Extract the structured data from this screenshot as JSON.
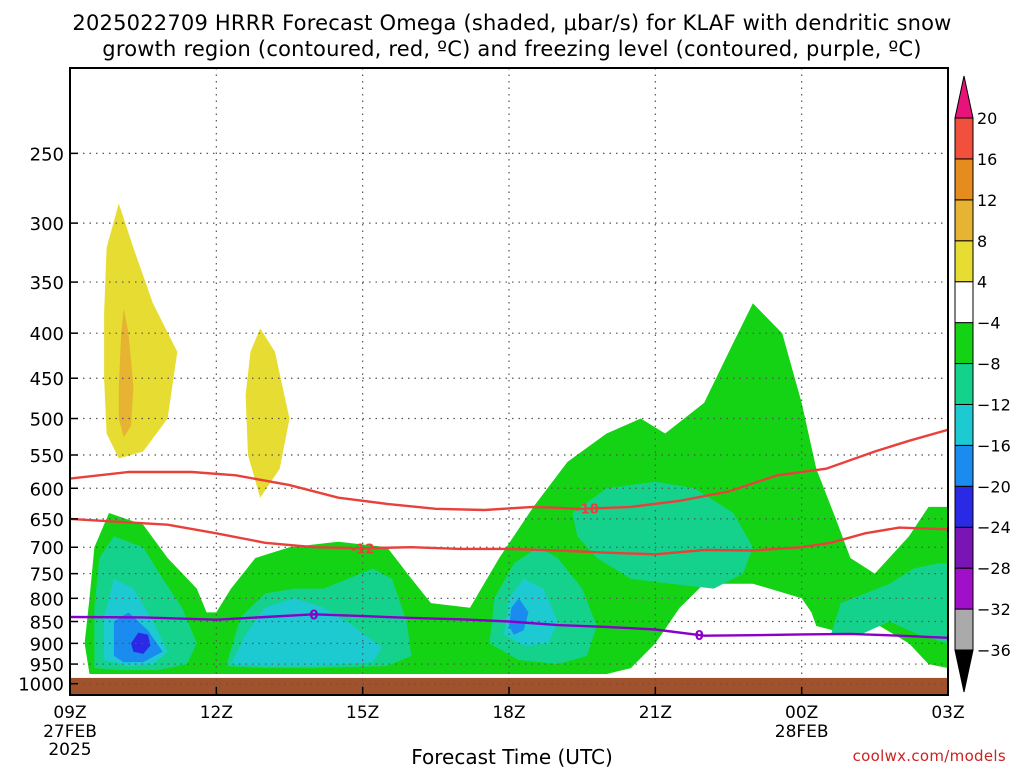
{
  "title_line1": "2025022709 HRRR Forecast Omega (shaded, μbar/s) for KLAF with dendritic snow",
  "title_line2": "growth region (contoured, red, ºC) and freezing level (contoured, purple, ºC)",
  "credit": "coolwx.com/models",
  "colors": {
    "frame": "#000000",
    "grid": "#555555",
    "ground": "#a0522d",
    "dgz_contour": "#e8413c",
    "freezing_contour": "#8a00c8"
  },
  "chart_data": {
    "type": "heatmap",
    "xlabel": "Forecast Time (UTC)",
    "ylabel": "",
    "x_range_hours": [
      0,
      18
    ],
    "y_range_hpa": [
      1030,
      200
    ],
    "y_scale": "log-pressure",
    "grid": true,
    "x_ticks": [
      {
        "hour": 0,
        "label": "09Z",
        "sub1": "27FEB",
        "sub2": "2025"
      },
      {
        "hour": 3,
        "label": "12Z",
        "sub1": "",
        "sub2": ""
      },
      {
        "hour": 6,
        "label": "15Z",
        "sub1": "",
        "sub2": ""
      },
      {
        "hour": 9,
        "label": "18Z",
        "sub1": "",
        "sub2": ""
      },
      {
        "hour": 12,
        "label": "21Z",
        "sub1": "",
        "sub2": ""
      },
      {
        "hour": 15,
        "label": "00Z",
        "sub1": "28FEB",
        "sub2": ""
      },
      {
        "hour": 18,
        "label": "03Z",
        "sub1": "",
        "sub2": ""
      }
    ],
    "y_ticks": [
      250,
      300,
      350,
      400,
      450,
      500,
      550,
      600,
      650,
      700,
      750,
      800,
      850,
      900,
      950,
      1000
    ],
    "colorbar": {
      "levels": [
        -36,
        -32,
        -28,
        -24,
        -20,
        -16,
        -12,
        -8,
        -4,
        4,
        8,
        12,
        16,
        20
      ],
      "colors": [
        "#aaaaaa",
        "#a010c8",
        "#7a14b4",
        "#2a2ae6",
        "#1a8cf0",
        "#1ecad2",
        "#14d28c",
        "#14d214",
        "#ffffff",
        "#e6dc32",
        "#e6b432",
        "#e68c1e",
        "#f0503c",
        "#e6147a"
      ],
      "under_color": "#000000",
      "over_color": "#e6147a"
    },
    "shaded_regions": [
      {
        "name": "rising -4 to -8, early",
        "color": "#14d214",
        "points": [
          [
            0.4,
            975
          ],
          [
            0.3,
            900
          ],
          [
            0.4,
            800
          ],
          [
            0.5,
            700
          ],
          [
            0.8,
            640
          ],
          [
            1.5,
            660
          ],
          [
            2.0,
            720
          ],
          [
            2.6,
            780
          ],
          [
            2.8,
            830
          ],
          [
            3.0,
            830
          ],
          [
            3.3,
            780
          ],
          [
            3.8,
            720
          ],
          [
            4.5,
            700
          ],
          [
            5.5,
            690
          ],
          [
            6.5,
            700
          ],
          [
            7.0,
            760
          ],
          [
            7.4,
            810
          ],
          [
            8.2,
            820
          ],
          [
            8.8,
            720
          ],
          [
            9.5,
            630
          ],
          [
            10.2,
            560
          ],
          [
            11.0,
            520
          ],
          [
            11.7,
            500
          ],
          [
            12.2,
            520
          ],
          [
            13.0,
            480
          ],
          [
            13.6,
            410
          ],
          [
            14.0,
            370
          ],
          [
            14.6,
            400
          ],
          [
            15.0,
            480
          ],
          [
            15.3,
            570
          ],
          [
            15.7,
            650
          ],
          [
            16.0,
            720
          ],
          [
            16.5,
            750
          ],
          [
            17.2,
            680
          ],
          [
            17.6,
            630
          ],
          [
            18.0,
            630
          ],
          [
            18.0,
            960
          ],
          [
            17.6,
            950
          ],
          [
            17.2,
            900
          ],
          [
            16.6,
            860
          ],
          [
            16.0,
            880
          ],
          [
            15.3,
            860
          ],
          [
            15.2,
            830
          ],
          [
            15.0,
            800
          ],
          [
            14.0,
            770
          ],
          [
            13.0,
            770
          ],
          [
            12.5,
            820
          ],
          [
            12.0,
            900
          ],
          [
            11.5,
            960
          ],
          [
            11.0,
            975
          ],
          [
            10.0,
            975
          ],
          [
            9.0,
            975
          ],
          [
            8.0,
            975
          ],
          [
            7.0,
            975
          ],
          [
            6.0,
            975
          ],
          [
            5.0,
            975
          ],
          [
            4.0,
            975
          ],
          [
            3.0,
            975
          ],
          [
            2.0,
            975
          ],
          [
            1.0,
            975
          ]
        ]
      },
      {
        "name": "rising -8 to -12",
        "color": "#14d28c",
        "points": [
          [
            0.5,
            960
          ],
          [
            0.5,
            820
          ],
          [
            0.6,
            720
          ],
          [
            0.9,
            680
          ],
          [
            1.5,
            700
          ],
          [
            1.9,
            760
          ],
          [
            2.3,
            820
          ],
          [
            2.6,
            900
          ],
          [
            2.4,
            950
          ],
          [
            1.8,
            965
          ],
          [
            1.0,
            965
          ]
        ]
      },
      {
        "name": "rising -8 to -12, mid",
        "color": "#14d28c",
        "points": [
          [
            3.2,
            955
          ],
          [
            3.5,
            840
          ],
          [
            4.0,
            790
          ],
          [
            4.6,
            780
          ],
          [
            5.2,
            780
          ],
          [
            5.7,
            760
          ],
          [
            6.2,
            740
          ],
          [
            6.6,
            760
          ],
          [
            6.9,
            850
          ],
          [
            7.0,
            930
          ],
          [
            6.5,
            955
          ],
          [
            5.0,
            960
          ],
          [
            4.0,
            960
          ]
        ]
      },
      {
        "name": "rising -8 to -12, 18Z",
        "color": "#14d28c",
        "points": [
          [
            8.6,
            900
          ],
          [
            8.7,
            800
          ],
          [
            9.1,
            730
          ],
          [
            9.6,
            700
          ],
          [
            10.0,
            720
          ],
          [
            10.5,
            780
          ],
          [
            10.8,
            860
          ],
          [
            10.6,
            930
          ],
          [
            10.0,
            950
          ],
          [
            9.2,
            940
          ]
        ]
      },
      {
        "name": "rising -8 to -12, 21Z",
        "color": "#14d28c",
        "points": [
          [
            10.3,
            640
          ],
          [
            11.0,
            600
          ],
          [
            12.0,
            590
          ],
          [
            12.8,
            600
          ],
          [
            13.6,
            640
          ],
          [
            14.0,
            700
          ],
          [
            13.8,
            750
          ],
          [
            13.2,
            780
          ],
          [
            12.3,
            770
          ],
          [
            11.5,
            760
          ],
          [
            10.8,
            720
          ],
          [
            10.4,
            680
          ]
        ]
      },
      {
        "name": "rising -8 to -12, late",
        "color": "#14d28c",
        "points": [
          [
            15.6,
            880
          ],
          [
            15.8,
            810
          ],
          [
            16.3,
            790
          ],
          [
            16.8,
            770
          ],
          [
            17.3,
            740
          ],
          [
            17.8,
            730
          ],
          [
            18.0,
            730
          ],
          [
            18.0,
            900
          ],
          [
            17.4,
            880
          ],
          [
            16.8,
            850
          ],
          [
            16.2,
            880
          ]
        ]
      },
      {
        "name": "rising -12 to -16",
        "color": "#1ecad2",
        "points": [
          [
            0.7,
            940
          ],
          [
            0.7,
            840
          ],
          [
            0.9,
            760
          ],
          [
            1.3,
            780
          ],
          [
            1.7,
            850
          ],
          [
            2.0,
            920
          ],
          [
            1.7,
            950
          ],
          [
            1.2,
            955
          ]
        ]
      },
      {
        "name": "rising -12 to -16, mid",
        "color": "#1ecad2",
        "points": [
          [
            3.3,
            950
          ],
          [
            3.6,
            880
          ],
          [
            4.0,
            820
          ],
          [
            4.6,
            800
          ],
          [
            5.2,
            820
          ],
          [
            5.8,
            860
          ],
          [
            6.4,
            910
          ],
          [
            6.2,
            945
          ],
          [
            5.0,
            955
          ],
          [
            4.0,
            955
          ]
        ]
      },
      {
        "name": "rising -12 to -16, 18Z",
        "color": "#1ecad2",
        "points": [
          [
            8.9,
            880
          ],
          [
            9.0,
            800
          ],
          [
            9.3,
            760
          ],
          [
            9.7,
            780
          ],
          [
            10.0,
            850
          ],
          [
            9.8,
            900
          ],
          [
            9.3,
            905
          ]
        ]
      },
      {
        "name": "rising -16 to -20",
        "color": "#1a8cf0",
        "points": [
          [
            0.9,
            930
          ],
          [
            0.9,
            850
          ],
          [
            1.2,
            830
          ],
          [
            1.6,
            870
          ],
          [
            1.9,
            920
          ],
          [
            1.5,
            945
          ],
          [
            1.1,
            945
          ]
        ]
      },
      {
        "name": "rising -16 to -20, 18Z",
        "color": "#1a8cf0",
        "points": [
          [
            9.0,
            860
          ],
          [
            9.05,
            820
          ],
          [
            9.2,
            800
          ],
          [
            9.4,
            830
          ],
          [
            9.3,
            870
          ],
          [
            9.1,
            880
          ]
        ]
      },
      {
        "name": "rising -20 to -24",
        "color": "#2a2ae6",
        "points": [
          [
            1.25,
            900
          ],
          [
            1.4,
            875
          ],
          [
            1.6,
            880
          ],
          [
            1.65,
            905
          ],
          [
            1.5,
            925
          ],
          [
            1.3,
            920
          ]
        ]
      },
      {
        "name": "sinking 4 to 8, early",
        "color": "#e6dc32",
        "points": [
          [
            0.7,
            450
          ],
          [
            0.7,
            380
          ],
          [
            0.75,
            320
          ],
          [
            1.0,
            285
          ],
          [
            1.3,
            320
          ],
          [
            1.7,
            370
          ],
          [
            2.2,
            420
          ],
          [
            2.0,
            500
          ],
          [
            1.5,
            545
          ],
          [
            1.0,
            555
          ],
          [
            0.75,
            520
          ]
        ]
      },
      {
        "name": "sinking 4 to 8, 13Z",
        "color": "#e6dc32",
        "points": [
          [
            3.6,
            470
          ],
          [
            3.7,
            420
          ],
          [
            3.9,
            395
          ],
          [
            4.2,
            420
          ],
          [
            4.5,
            500
          ],
          [
            4.3,
            570
          ],
          [
            3.9,
            615
          ],
          [
            3.65,
            550
          ]
        ]
      },
      {
        "name": "sinking 8 to 12",
        "color": "#e6b432",
        "points": [
          [
            1.0,
            460
          ],
          [
            1.05,
            400
          ],
          [
            1.1,
            375
          ],
          [
            1.2,
            400
          ],
          [
            1.3,
            460
          ],
          [
            1.25,
            510
          ],
          [
            1.1,
            525
          ],
          [
            1.0,
            500
          ]
        ]
      }
    ],
    "contours": [
      {
        "name": "dgz upper",
        "label": "-18",
        "label_at": 10.6,
        "color": "#e8413c",
        "points": [
          [
            0,
            585
          ],
          [
            1.2,
            575
          ],
          [
            2.5,
            575
          ],
          [
            3.4,
            580
          ],
          [
            4.5,
            595
          ],
          [
            5.5,
            615
          ],
          [
            6.5,
            625
          ],
          [
            7.5,
            633
          ],
          [
            8.5,
            635
          ],
          [
            9.5,
            630
          ],
          [
            10.5,
            633
          ],
          [
            11.5,
            630
          ],
          [
            12.5,
            620
          ],
          [
            13.5,
            605
          ],
          [
            14.5,
            580
          ],
          [
            15.5,
            570
          ],
          [
            16.5,
            545
          ],
          [
            17.2,
            530
          ],
          [
            18,
            515
          ]
        ]
      },
      {
        "name": "dgz lower",
        "label": "-12",
        "label_at": 6.0,
        "color": "#e8413c",
        "points": [
          [
            0,
            650
          ],
          [
            1.0,
            655
          ],
          [
            2.0,
            660
          ],
          [
            3.0,
            675
          ],
          [
            4.0,
            692
          ],
          [
            5.0,
            700
          ],
          [
            6.0,
            702
          ],
          [
            7.0,
            700
          ],
          [
            8.0,
            703
          ],
          [
            9.0,
            703
          ],
          [
            10.0,
            706
          ],
          [
            11.0,
            710
          ],
          [
            12.0,
            713
          ],
          [
            13.0,
            705
          ],
          [
            14.0,
            706
          ],
          [
            15.0,
            700
          ],
          [
            15.6,
            692
          ],
          [
            16.3,
            675
          ],
          [
            17.0,
            665
          ],
          [
            18,
            668
          ]
        ]
      },
      {
        "name": "freezing level",
        "label": "0",
        "label_at": 5.0,
        "label2": "0",
        "label2_at": 12.9,
        "color": "#8a00c8",
        "points": [
          [
            0,
            840
          ],
          [
            1.5,
            841
          ],
          [
            3.0,
            846
          ],
          [
            4.0,
            840
          ],
          [
            5.0,
            834
          ],
          [
            6.0,
            838
          ],
          [
            7.0,
            842
          ],
          [
            8.0,
            845
          ],
          [
            9.0,
            850
          ],
          [
            10.0,
            858
          ],
          [
            11.0,
            862
          ],
          [
            12.0,
            868
          ],
          [
            13.0,
            882
          ],
          [
            14.0,
            881
          ],
          [
            15.0,
            879
          ],
          [
            16.0,
            878
          ],
          [
            17.0,
            882
          ],
          [
            18,
            887
          ]
        ]
      }
    ]
  }
}
